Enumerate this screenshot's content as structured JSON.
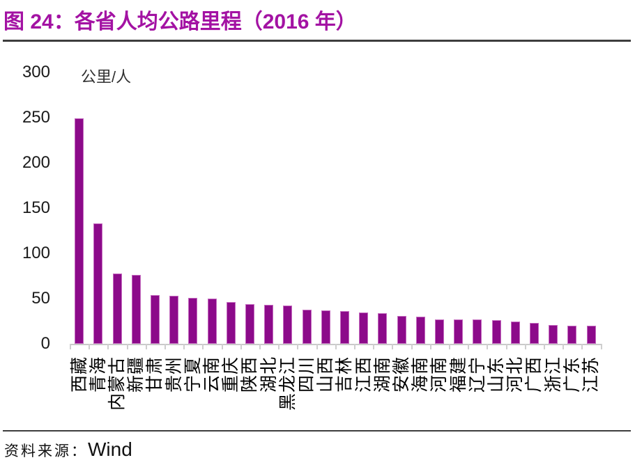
{
  "header": {
    "title": "图 24：各省人均公路里程（2016 年）"
  },
  "footer": {
    "source_label": "资料来源：",
    "source_name": "Wind"
  },
  "chart_data": {
    "type": "bar",
    "title": "各省人均公路里程（2016 年）",
    "unit_label": "公里/人",
    "categories": [
      "西藏",
      "青海",
      "内蒙古",
      "新疆",
      "甘肃",
      "贵州",
      "宁夏",
      "云南",
      "重庆",
      "陕西",
      "湖北",
      "黑龙江",
      "四川",
      "山西",
      "吉林",
      "江西",
      "湖南",
      "安徽",
      "海南",
      "河南",
      "福建",
      "辽宁",
      "山东",
      "河北",
      "广西",
      "浙江",
      "广东",
      "江苏"
    ],
    "values": [
      249,
      133,
      78,
      76,
      54,
      53,
      51,
      50,
      46,
      44,
      43,
      42,
      38,
      37,
      36,
      35,
      34,
      31,
      30,
      27,
      27,
      27,
      26,
      25,
      23,
      21,
      20,
      20
    ],
    "xlabel": "",
    "ylabel": "公里/人",
    "ylim": [
      0,
      300
    ],
    "yticks": [
      0,
      50,
      100,
      150,
      200,
      250,
      300
    ],
    "grid": false,
    "legend": false,
    "colors": {
      "bar_fill": "#8C0A8A",
      "bar_edge": "#C46BBF",
      "axis": "#C9C9C9",
      "title": "#A312A3"
    }
  }
}
